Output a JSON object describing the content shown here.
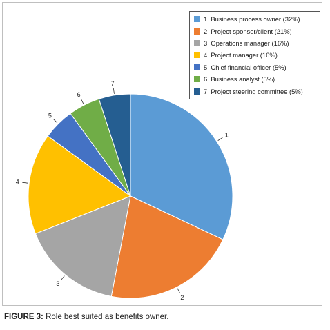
{
  "chart_data": {
    "type": "pie",
    "categories": [
      "1",
      "2",
      "3",
      "4",
      "5",
      "6",
      "7"
    ],
    "values": [
      32,
      21,
      16,
      16,
      5,
      5,
      5
    ],
    "colors": [
      "#5b9bd5",
      "#ed7d31",
      "#a5a5a5",
      "#ffc000",
      "#4472c4",
      "#70ad47",
      "#255e91"
    ],
    "legend": [
      "1. Business process owner (32%)",
      "2. Project sponsor/client (21%)",
      "3. Operations manager (16%)",
      "4. Project manager (16%)",
      "5. Chief financial officer (5%)",
      "6. Business analyst (5%)",
      "7. Project steering committee (5%)"
    ],
    "legend_position": "top-right",
    "start": "top, clockwise"
  },
  "caption": {
    "label": "FIGURE 3:",
    "text": " Role best suited as benefits owner."
  }
}
